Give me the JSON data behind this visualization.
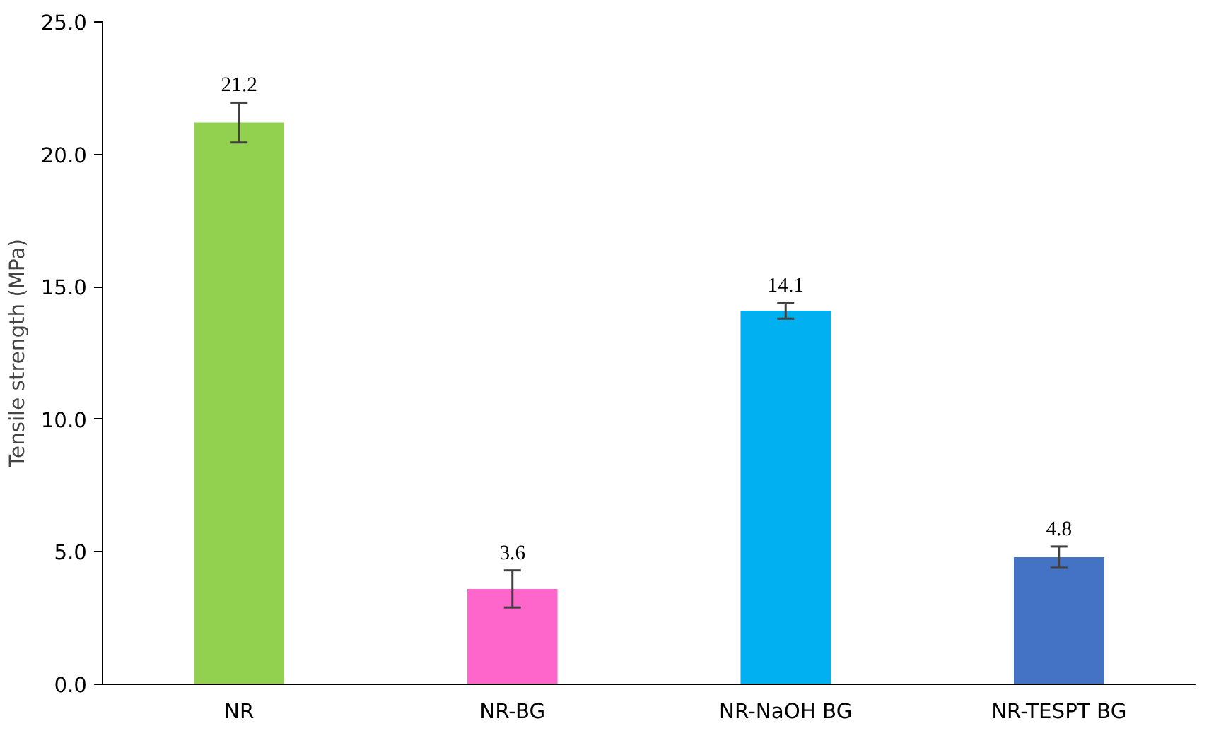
{
  "chart_data": {
    "type": "bar",
    "ylabel": "Tensile strength (MPa)",
    "categories": [
      "NR",
      "NR-BG",
      "NR-NaOH BG",
      "NR-TESPT BG"
    ],
    "values": [
      21.2,
      3.6,
      14.1,
      4.8
    ],
    "colors": [
      "#92d050",
      "#ff66cc",
      "#00b0f0",
      "#4472c4"
    ],
    "errors": [
      0.75,
      0.7,
      0.3,
      0.4
    ],
    "data_labels": true,
    "ylim": [
      0,
      25
    ],
    "yticks": [
      {
        "value": 0,
        "label": "0.0"
      },
      {
        "value": 5,
        "label": "5.0"
      },
      {
        "value": 10,
        "label": "10.0"
      },
      {
        "value": 15,
        "label": "15.0"
      },
      {
        "value": 20,
        "label": "20.0"
      },
      {
        "value": 25,
        "label": "25.0"
      }
    ],
    "grid": false
  }
}
